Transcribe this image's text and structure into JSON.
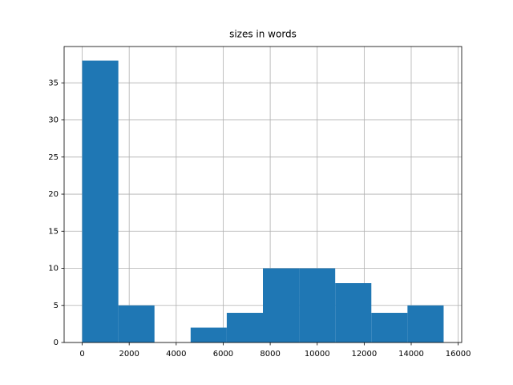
{
  "chart_data": {
    "type": "histogram",
    "title": "sizes in words",
    "bins": [
      0,
      1538,
      3076,
      4614,
      6152,
      7690,
      9228,
      10766,
      12304,
      13842,
      15380
    ],
    "values": [
      38,
      5,
      0,
      2,
      4,
      10,
      10,
      8,
      4,
      5
    ],
    "color": "#1f77b4",
    "xlim": [
      -769,
      16149
    ],
    "xticks": [
      0,
      2000,
      4000,
      6000,
      8000,
      10000,
      12000,
      14000,
      16000
    ],
    "ylim": [
      0,
      39.9
    ],
    "yticks": [
      0,
      5,
      10,
      15,
      20,
      25,
      30,
      35
    ],
    "grid": true
  }
}
